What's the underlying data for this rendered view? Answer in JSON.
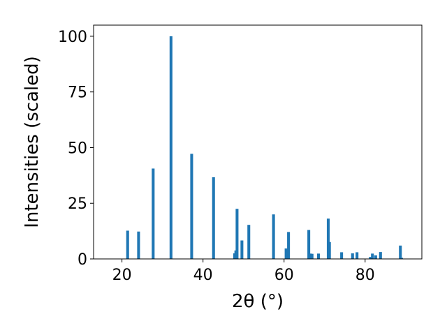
{
  "chart_data": {
    "type": "bar",
    "title": "",
    "xlabel": "2θ (°)",
    "ylabel": "Intensities (scaled)",
    "xlim": [
      13,
      94
    ],
    "ylim": [
      0,
      105
    ],
    "xticks": [
      20,
      40,
      60,
      80
    ],
    "yticks": [
      0,
      25,
      50,
      75,
      100
    ],
    "grid": false,
    "legend": "none",
    "bar_color": "#1f77b4",
    "bar_width": 0.7,
    "x": [
      21.4,
      24.1,
      27.7,
      32.1,
      37.2,
      42.6,
      47.8,
      48.1,
      48.4,
      49.6,
      51.3,
      57.4,
      60.5,
      61.1,
      66.1,
      66.5,
      66.9,
      68.5,
      70.9,
      71.2,
      74.2,
      76.9,
      78.0,
      81.3,
      81.8,
      82.6,
      83.8,
      88.7,
      89.0
    ],
    "values": [
      12.7,
      12.3,
      40.6,
      100.0,
      47.2,
      36.7,
      2.5,
      3.8,
      22.5,
      8.3,
      15.3,
      20.0,
      4.7,
      12.1,
      13.0,
      2.4,
      2.3,
      2.4,
      18.1,
      7.6,
      3.0,
      2.5,
      3.0,
      0.9,
      2.4,
      1.6,
      3.1,
      6.0,
      0.5
    ]
  }
}
